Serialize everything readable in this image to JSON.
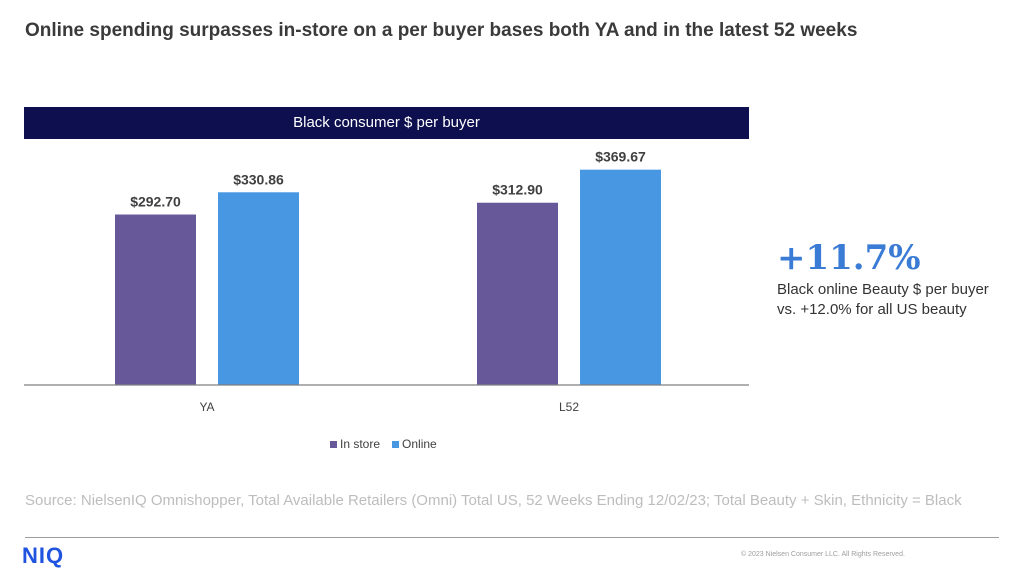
{
  "title": "Online spending surpasses in-store on a per buyer bases both YA and in the latest 52 weeks",
  "chart_header": "Black consumer $ per buyer",
  "chart_data": {
    "type": "bar",
    "title": "Black consumer $ per buyer",
    "categories": [
      "YA",
      "L52"
    ],
    "series": [
      {
        "name": "In store",
        "color": "#67589a",
        "values": [
          292.7,
          312.9
        ],
        "labels": [
          "$292.70",
          "$312.90"
        ]
      },
      {
        "name": "Online",
        "color": "#4797e3",
        "values": [
          330.86,
          369.67
        ],
        "labels": [
          "$330.86",
          "$369.67"
        ]
      }
    ],
    "ylim": [
      0,
      400
    ],
    "grid": false,
    "legend": "bottom"
  },
  "legend": {
    "in_store": "In store",
    "online": "Online"
  },
  "callout": {
    "value": "+11.7%",
    "text": "Black online Beauty $ per buyer vs. +12.0% for all US beauty"
  },
  "source": "Source: NielsenIQ Omnishopper, Total Available Retailers (Omni) Total US, 52 Weeks Ending 12/02/23; Total Beauty + Skin, Ethnicity = Black",
  "logo_text": "NIQ",
  "copyright": "© 2023 Nielsen Consumer LLC. All Rights Reserved.",
  "colors": {
    "header_bg": "#0d0f4f",
    "accent": "#3a7bd5",
    "logo": "#1f53e0"
  }
}
